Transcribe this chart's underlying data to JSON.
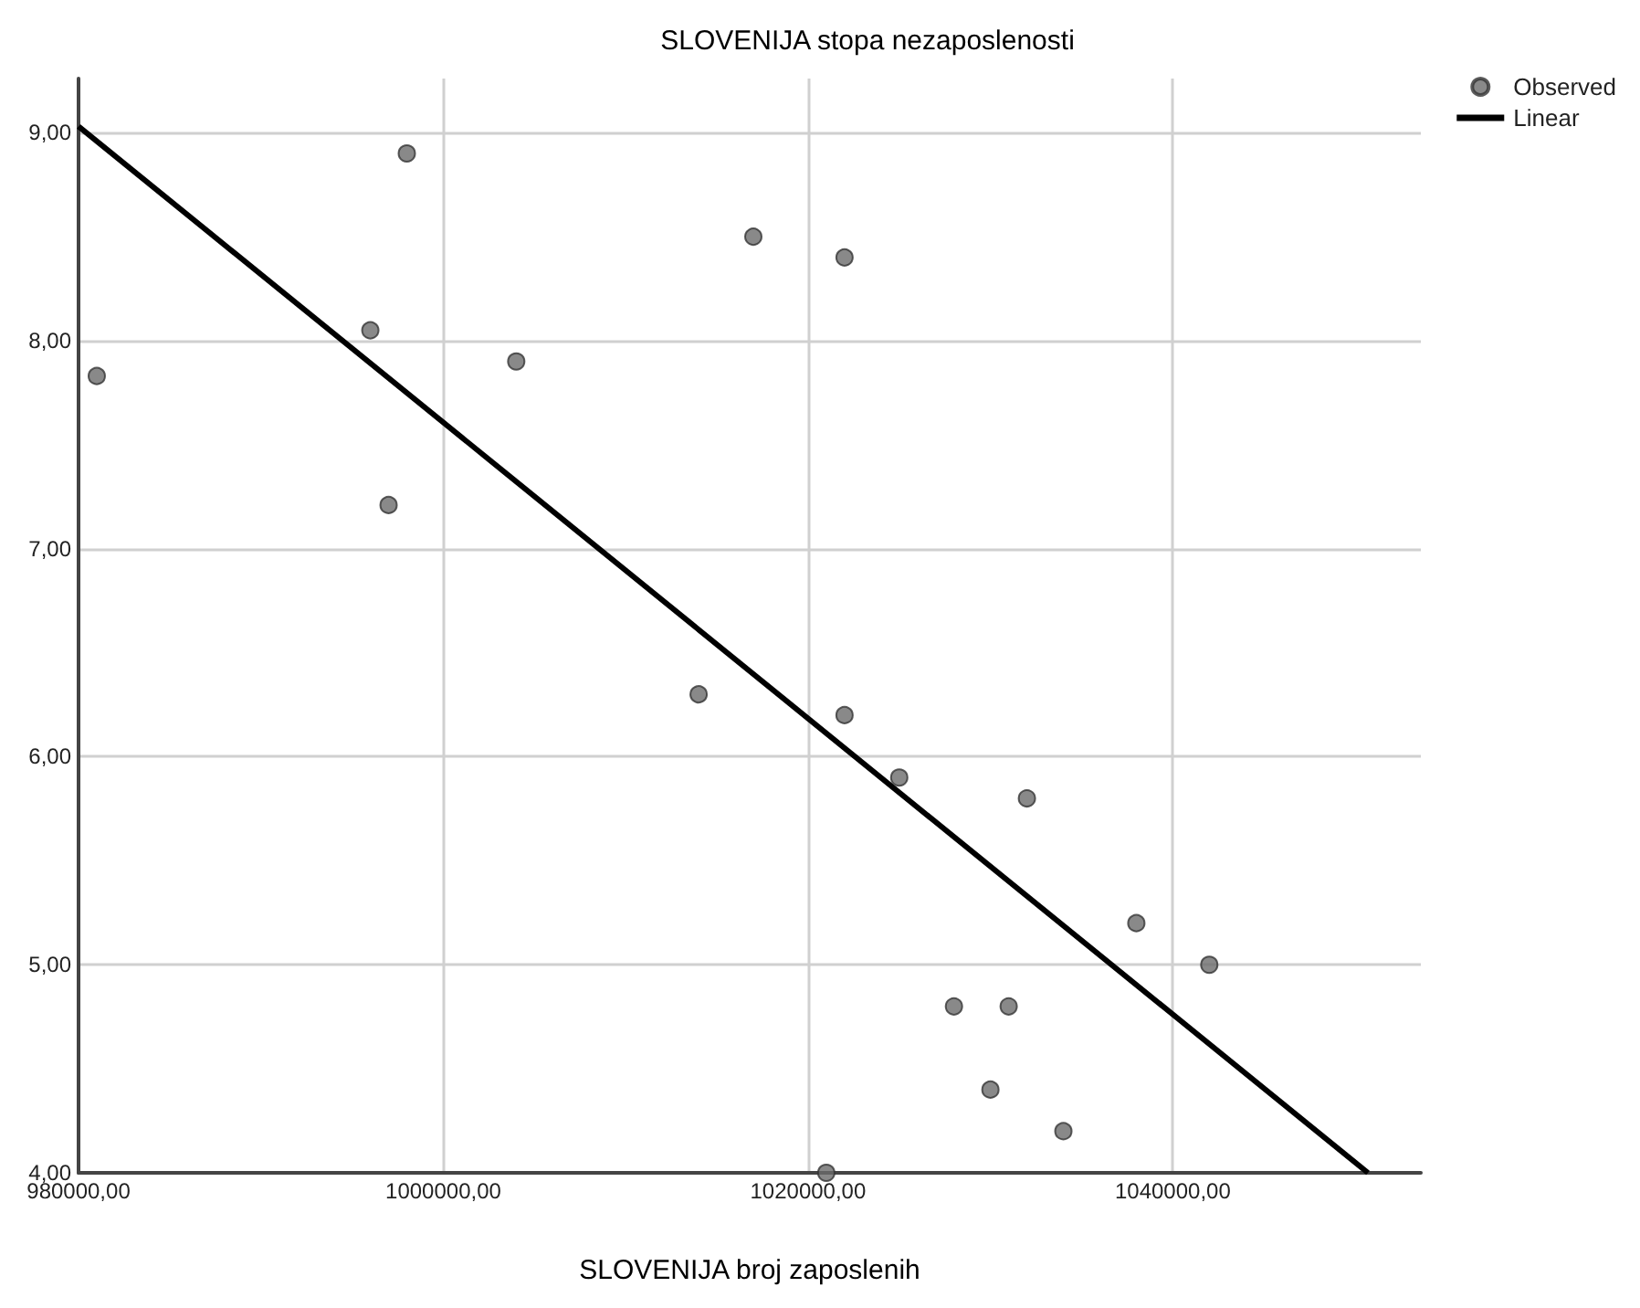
{
  "chart_data": {
    "type": "scatter",
    "title": "SLOVENIJA stopa nezaposlenosti",
    "xlabel": "SLOVENIJA broj zaposlenih",
    "xlim": [
      980000,
      1053600
    ],
    "ylim": [
      4,
      9.26
    ],
    "xticks": [
      {
        "value": 980000,
        "label": "980000,00"
      },
      {
        "value": 1000000,
        "label": "1000000,00"
      },
      {
        "value": 1020000,
        "label": "1020000,00"
      },
      {
        "value": 1040000,
        "label": "1040000,00"
      }
    ],
    "yticks": [
      {
        "value": 4,
        "label": "4,00"
      },
      {
        "value": 5,
        "label": "5,00"
      },
      {
        "value": 6,
        "label": "6,00"
      },
      {
        "value": 7,
        "label": "7,00"
      },
      {
        "value": 8,
        "label": "8,00"
      },
      {
        "value": 9,
        "label": "9,00"
      }
    ],
    "grid": true,
    "legend": "top right",
    "series": [
      {
        "name": "Observed",
        "color": "#6b6b6b",
        "marker": "circle",
        "x": [
          981000,
          998000,
          996000,
          997000,
          1004000,
          1017000,
          1022000,
          1014000,
          1022000,
          1025000,
          1032000,
          1038000,
          1042000,
          1028000,
          1031000,
          1030000,
          1034000,
          1021000
        ],
        "values": [
          7.83,
          8.9,
          8.05,
          7.21,
          7.9,
          8.5,
          8.4,
          6.3,
          6.2,
          5.9,
          5.8,
          5.2,
          5.0,
          4.8,
          4.8,
          4.4,
          4.2,
          4.0
        ]
      },
      {
        "name": "Linear",
        "type": "line",
        "color": "#000000",
        "marker": "none",
        "x": [
          980000,
          1050700
        ],
        "values": [
          9.03,
          4.0
        ]
      }
    ]
  }
}
